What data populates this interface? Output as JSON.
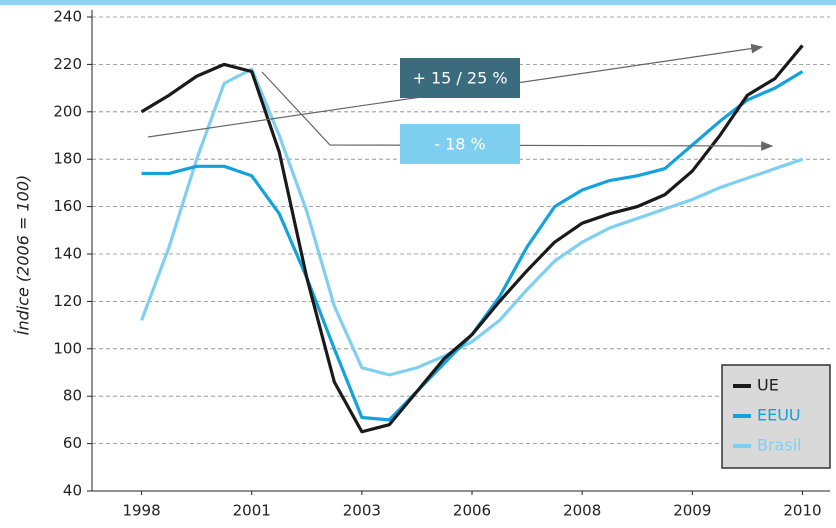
{
  "chart_data": {
    "type": "line",
    "ylabel": "Índice (2006 = 100)",
    "x": [
      0,
      0.25,
      0.5,
      0.75,
      1,
      1.25,
      1.5,
      1.75,
      2,
      2.25,
      2.5,
      2.75,
      3,
      3.25,
      3.5,
      3.75,
      4,
      4.25,
      4.5,
      4.75,
      5,
      5.25,
      5.5,
      5.75,
      6
    ],
    "xlim": [
      -0.45,
      6.25
    ],
    "xticks": [
      {
        "value": 0,
        "label": "1998"
      },
      {
        "value": 1,
        "label": "2001"
      },
      {
        "value": 2,
        "label": "2003"
      },
      {
        "value": 3,
        "label": "2006"
      },
      {
        "value": 4,
        "label": "2008"
      },
      {
        "value": 5,
        "label": "2009"
      },
      {
        "value": 6,
        "label": "2010"
      }
    ],
    "ylim": [
      40,
      240
    ],
    "yticks": [
      40,
      60,
      80,
      100,
      120,
      140,
      160,
      180,
      200,
      220,
      240
    ],
    "grid": true,
    "legend": "lower right",
    "series": [
      {
        "name": "UE",
        "color": "#1a1a1a",
        "values": [
          200,
          207,
          215,
          220,
          217,
          183,
          130,
          86,
          65,
          68,
          82,
          96,
          106,
          120,
          133,
          145,
          153,
          157,
          160,
          165,
          175,
          190,
          207,
          214,
          228
        ]
      },
      {
        "name": "EEUU",
        "color": "#13a2dc",
        "values": [
          174,
          174,
          177,
          177,
          173,
          157,
          130,
          100,
          71,
          70,
          82,
          94,
          106,
          122,
          143,
          160,
          167,
          171,
          173,
          176,
          186,
          196,
          205,
          210,
          217
        ]
      },
      {
        "name": "Brasil",
        "color": "#7fd0f0",
        "values": [
          112,
          143,
          180,
          212,
          218,
          190,
          158,
          118,
          92,
          89,
          92,
          97,
          103,
          112,
          125,
          137,
          145,
          151,
          155,
          159,
          163,
          168,
          172,
          176,
          180
        ]
      }
    ],
    "annotations": [
      "+ 15 / 25 %",
      "- 18 %"
    ]
  }
}
